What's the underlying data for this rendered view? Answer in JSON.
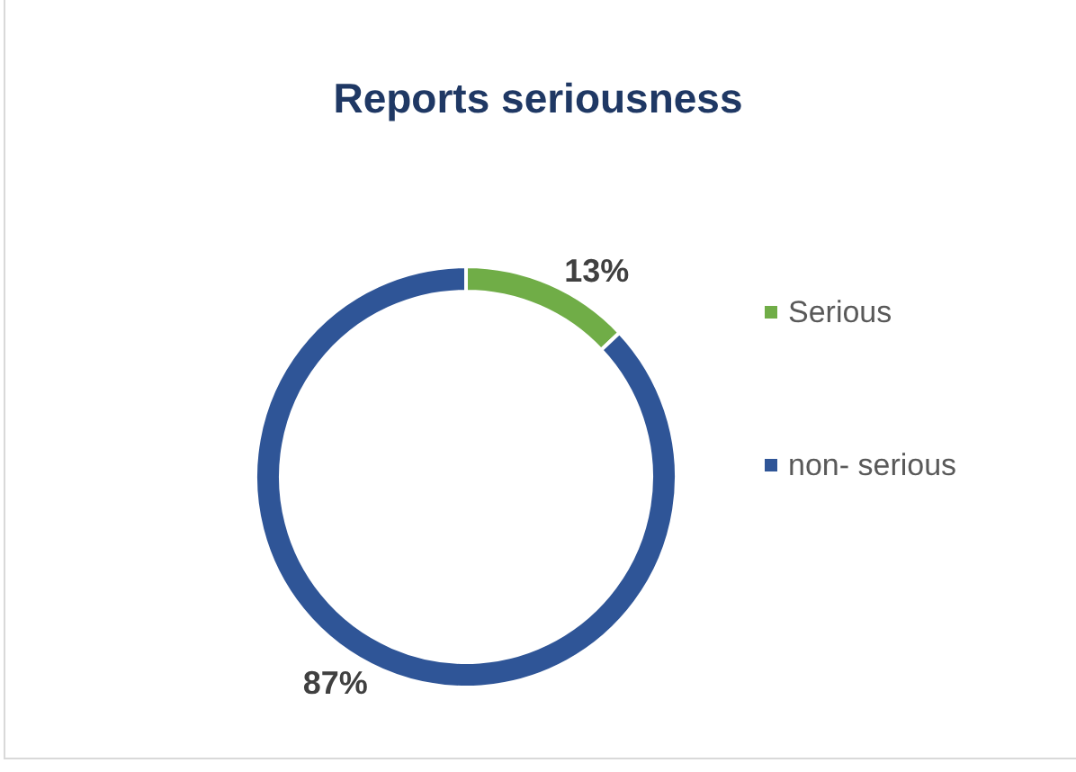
{
  "chart_data": {
    "type": "donut",
    "title": "Reports seriousness",
    "categories": [
      "Serious",
      "non- serious"
    ],
    "values": [
      13,
      87
    ],
    "colors": [
      "#70ad47",
      "#2f5597"
    ],
    "value_labels": [
      "13%",
      "87%"
    ],
    "legend": "right"
  }
}
